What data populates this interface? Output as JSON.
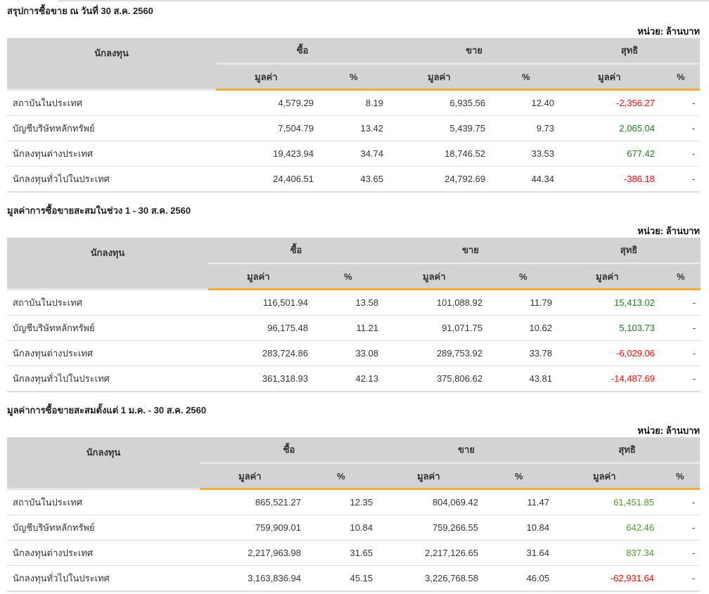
{
  "colors": {
    "negative": "#ff0000",
    "positive": "#1a7f1a",
    "positive_light": "#4f9a2a",
    "accent": "#f5ac31",
    "header_bg": "#d3d3d3"
  },
  "headers": {
    "investor": "นักลงทุน",
    "buy": "ซื้อ",
    "sell": "ขาย",
    "net": "สุทธิ",
    "value": "มูลค่า",
    "percent": "%"
  },
  "tables": [
    {
      "title": "สรุปการซื้อขาย ณ วันที่ 30 ส.ค. 2560",
      "unit": "หน่วย: ล้านบาท",
      "rows": [
        {
          "investor": "สถาบันในประเทศ",
          "buy_value": "4,579.29",
          "buy_pct": "8.19",
          "sell_value": "6,935.56",
          "sell_pct": "12.40",
          "net_value": "-2,356.27",
          "net_pct": "-"
        },
        {
          "investor": "บัญชีบริษัทหลักทรัพย์",
          "buy_value": "7,504.79",
          "buy_pct": "13.42",
          "sell_value": "5,439.75",
          "sell_pct": "9.73",
          "net_value": "2,065.04",
          "net_pct": "-"
        },
        {
          "investor": "นักลงทุนต่างประเทศ",
          "buy_value": "19,423.94",
          "buy_pct": "34.74",
          "sell_value": "18,746.52",
          "sell_pct": "33.53",
          "net_value": "677.42",
          "net_pct": "-"
        },
        {
          "investor": "นักลงทุนทั่วไปในประเทศ",
          "buy_value": "24,406.51",
          "buy_pct": "43.65",
          "sell_value": "24,792.69",
          "sell_pct": "44.34",
          "net_value": "-386.18",
          "net_pct": "-"
        }
      ]
    },
    {
      "title": "มูลค่าการซื้อขายสะสมในช่วง 1 - 30 ส.ค. 2560",
      "unit": "หน่วย: ล้านบาท",
      "rows": [
        {
          "investor": "สถาบันในประเทศ",
          "buy_value": "116,501.94",
          "buy_pct": "13.58",
          "sell_value": "101,088.92",
          "sell_pct": "11.79",
          "net_value": "15,413.02",
          "net_pct": "-"
        },
        {
          "investor": "บัญชีบริษัทหลักทรัพย์",
          "buy_value": "96,175.48",
          "buy_pct": "11.21",
          "sell_value": "91,071.75",
          "sell_pct": "10.62",
          "net_value": "5,103.73",
          "net_pct": "-"
        },
        {
          "investor": "นักลงทุนต่างประเทศ",
          "buy_value": "283,724.86",
          "buy_pct": "33.08",
          "sell_value": "289,753.92",
          "sell_pct": "33.78",
          "net_value": "-6,029.06",
          "net_pct": "-"
        },
        {
          "investor": "นักลงทุนทั่วไปในประเทศ",
          "buy_value": "361,318.93",
          "buy_pct": "42.13",
          "sell_value": "375,806.62",
          "sell_pct": "43.81",
          "net_value": "-14,487.69",
          "net_pct": "-"
        }
      ]
    },
    {
      "title": "มูลค่าการซื้อขายสะสมตั้งแต่ 1 ม.ค. - 30 ส.ค. 2560",
      "unit": "หน่วย: ล้านบาท",
      "rows": [
        {
          "investor": "สถาบันในประเทศ",
          "buy_value": "865,521.27",
          "buy_pct": "12.35",
          "sell_value": "804,069.42",
          "sell_pct": "11.47",
          "net_value": "61,451.85",
          "net_pct": "-"
        },
        {
          "investor": "บัญชีบริษัทหลักทรัพย์",
          "buy_value": "759,909.01",
          "buy_pct": "10.84",
          "sell_value": "759,266.55",
          "sell_pct": "10.84",
          "net_value": "642.46",
          "net_pct": "-"
        },
        {
          "investor": "นักลงทุนต่างประเทศ",
          "buy_value": "2,217,963.98",
          "buy_pct": "31.65",
          "sell_value": "2,217,126.65",
          "sell_pct": "31.64",
          "net_value": "837.34",
          "net_pct": "-"
        },
        {
          "investor": "นักลงทุนทั่วไปในประเทศ",
          "buy_value": "3,163,836.94",
          "buy_pct": "45.15",
          "sell_value": "3,226,768.58",
          "sell_pct": "46.05",
          "net_value": "-62,931.64",
          "net_pct": "-"
        }
      ]
    }
  ]
}
